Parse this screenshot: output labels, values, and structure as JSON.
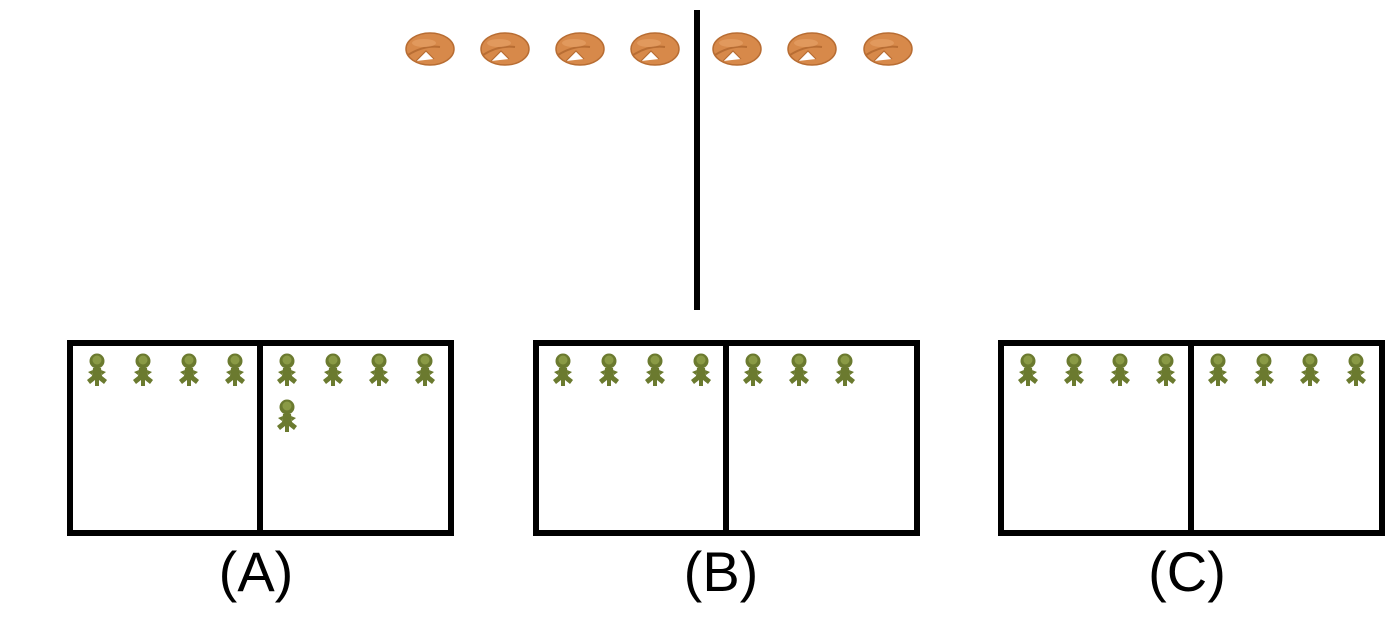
{
  "colors": {
    "cookie": "#d7894a",
    "cookie_edge": "#b86d33",
    "person": "#6b7a2f",
    "person_light": "#8a9a45",
    "line": "#000000"
  },
  "icons": {
    "top_item": "fortune-cookie-icon",
    "box_item": "person-icon"
  },
  "top": {
    "left_count": 4,
    "right_count": 3
  },
  "options": [
    {
      "label": "(A)",
      "left_count": 4,
      "right_count": 5
    },
    {
      "label": "(B)",
      "left_count": 4,
      "right_count": 3
    },
    {
      "label": "(C)",
      "left_count": 4,
      "right_count": 4
    }
  ]
}
